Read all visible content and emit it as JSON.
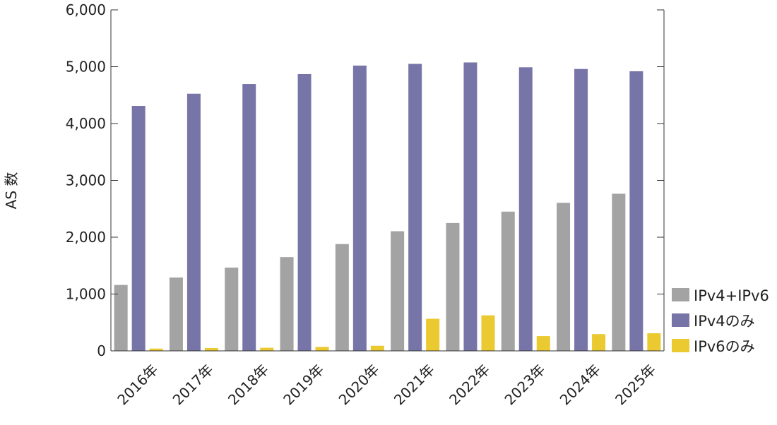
{
  "chart_data": {
    "type": "bar",
    "ylabel": "AS 数",
    "ylim": [
      0,
      6000
    ],
    "yticks": [
      0,
      1000,
      2000,
      3000,
      4000,
      5000,
      6000
    ],
    "ytick_labels": [
      "0",
      "1,000",
      "2,000",
      "3,000",
      "4,000",
      "5,000",
      "6,000"
    ],
    "right_axis_ticks": 6,
    "categories": [
      "2016年",
      "2017年",
      "2018年",
      "2019年",
      "2020年",
      "2021年",
      "2022年",
      "2023年",
      "2024年",
      "2025年"
    ],
    "series": [
      {
        "name": "IPv4+IPv6",
        "color": "#a3a3a3",
        "values": [
          1160,
          1290,
          1465,
          1650,
          1880,
          2105,
          2250,
          2450,
          2605,
          2765
        ]
      },
      {
        "name": "IPv4のみ",
        "color": "#7774a8",
        "values": [
          4310,
          4525,
          4695,
          4870,
          5020,
          5050,
          5075,
          4990,
          4960,
          4920
        ]
      },
      {
        "name": "IPv6のみ",
        "color": "#ebc930",
        "values": [
          40,
          50,
          55,
          70,
          90,
          565,
          625,
          260,
          295,
          310
        ]
      }
    ],
    "legend": "right-bottom",
    "grid": false
  }
}
